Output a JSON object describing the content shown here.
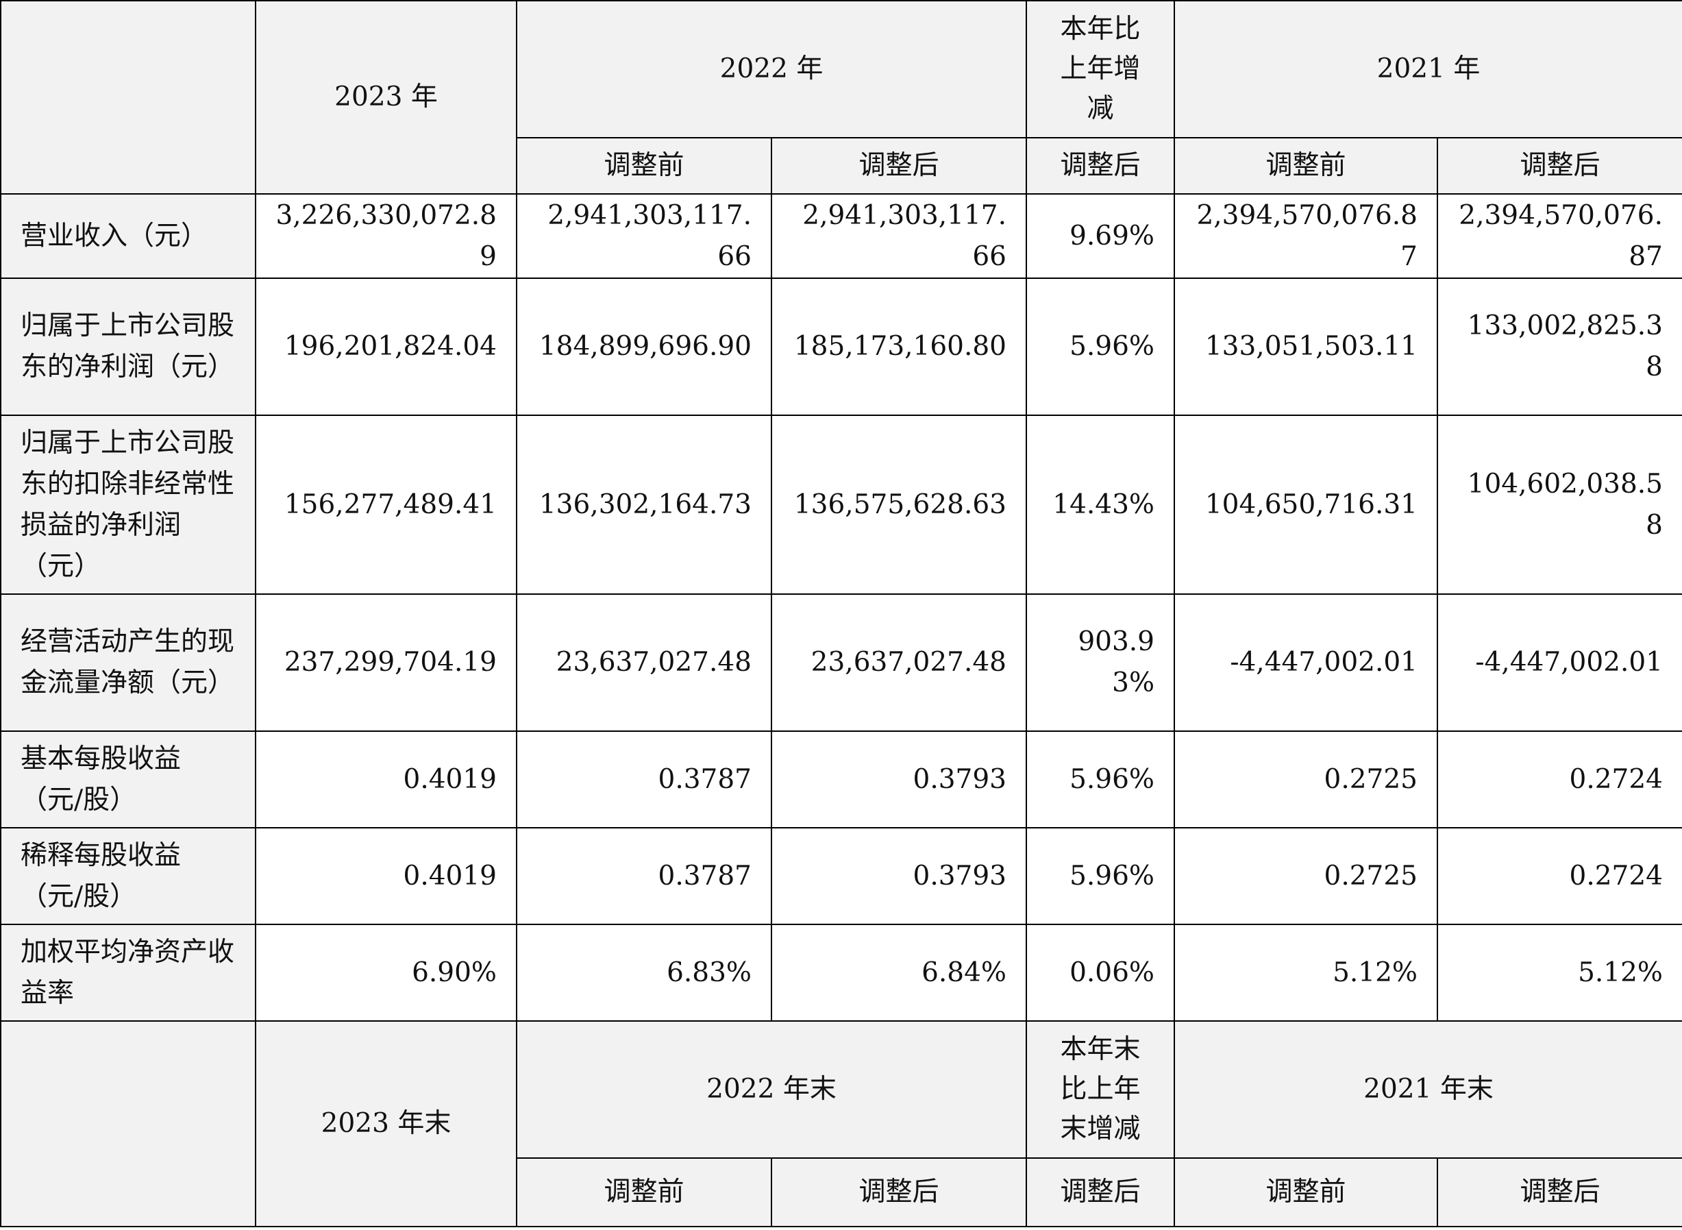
{
  "header1": {
    "y2023": "2023 年",
    "y2022": "2022 年",
    "change": "本年比\n上年增\n减",
    "y2021": "2021 年",
    "sub": {
      "before_2022": "调整前",
      "after_2022": "调整后",
      "after_change": "调整后",
      "before_2021": "调整前",
      "after_2021": "调整后"
    }
  },
  "rows": [
    {
      "label": "营业收入（元）",
      "values": [
        "3,226,330,072.89",
        "2,941,303,117.66",
        "2,941,303,117.66",
        "9.69%",
        "2,394,570,076.87",
        "2,394,570,076.87"
      ]
    },
    {
      "label": "归属于上市公司股东的净利润（元）",
      "values": [
        "196,201,824.04",
        "184,899,696.90",
        "185,173,160.80",
        "5.96%",
        "133,051,503.11",
        "133,002,825.38"
      ]
    },
    {
      "label": "归属于上市公司股东的扣除非经常性损益的净利润（元）",
      "values": [
        "156,277,489.41",
        "136,302,164.73",
        "136,575,628.63",
        "14.43%",
        "104,650,716.31",
        "104,602,038.58"
      ]
    },
    {
      "label": "经营活动产生的现金流量净额（元）",
      "values": [
        "237,299,704.19",
        "23,637,027.48",
        "23,637,027.48",
        "903.93%",
        "-4,447,002.01",
        "-4,447,002.01"
      ]
    },
    {
      "label": "基本每股收益（元/股）",
      "values": [
        "0.4019",
        "0.3787",
        "0.3793",
        "5.96%",
        "0.2725",
        "0.2724"
      ]
    },
    {
      "label": "稀释每股收益（元/股）",
      "values": [
        "0.4019",
        "0.3787",
        "0.3793",
        "5.96%",
        "0.2725",
        "0.2724"
      ]
    },
    {
      "label": "加权平均净资产收益率",
      "values": [
        "6.90%",
        "6.83%",
        "6.84%",
        "0.06%",
        "5.12%",
        "5.12%"
      ]
    }
  ],
  "header2": {
    "y2023": "2023 年末",
    "y2022": "2022 年末",
    "change": "本年末\n比上年\n末增减",
    "y2021": "2021 年末",
    "sub": {
      "before_2022": "调整前",
      "after_2022": "调整后",
      "after_change": "调整后",
      "before_2021": "调整前",
      "after_2021": "调整后"
    }
  }
}
